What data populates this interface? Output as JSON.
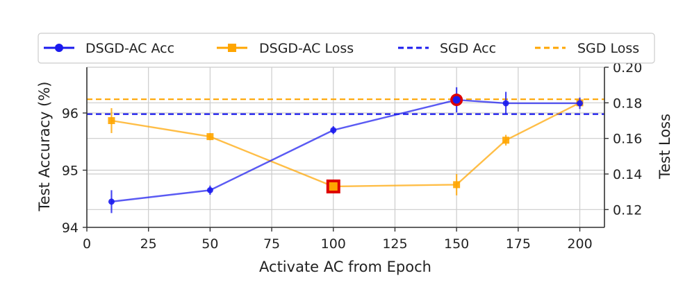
{
  "chart_data": {
    "type": "line",
    "title": "",
    "xlabel": "Activate AC from Epoch",
    "ylabel_left": "Test Accuracy (%)",
    "ylabel_right": "Test Loss",
    "xlim": [
      0,
      210
    ],
    "ylim_left": [
      94.0,
      96.8
    ],
    "ylim_right": [
      0.11,
      0.2
    ],
    "xticks": [
      0,
      25,
      50,
      75,
      100,
      125,
      150,
      175,
      200
    ],
    "yticks_left": [
      94,
      95,
      96
    ],
    "yticks_right": [
      0.12,
      0.14,
      0.16,
      0.18,
      0.2
    ],
    "xtick_labels": [
      "0",
      "25",
      "50",
      "75",
      "100",
      "125",
      "150",
      "175",
      "200"
    ],
    "ytick_left_labels": [
      "94",
      "95",
      "96"
    ],
    "ytick_right_labels": [
      "0.12",
      "0.14",
      "0.16",
      "0.18",
      "0.20"
    ],
    "grid": true,
    "legend_position": "top",
    "colors": {
      "acc": "#1a1aee",
      "loss": "#ffa500",
      "highlight_edge": "#dd0000"
    },
    "series": [
      {
        "name": "DSGD-AC Acc",
        "axis": "left",
        "style": "line-circle",
        "x": [
          10,
          50,
          100,
          150,
          170,
          200
        ],
        "values": [
          94.45,
          94.65,
          95.7,
          96.23,
          96.17,
          96.17
        ],
        "err": [
          0.2,
          0.08,
          0.07,
          0.22,
          0.2,
          0.1
        ],
        "highlight_index": 3
      },
      {
        "name": "DSGD-AC Loss",
        "axis": "right",
        "style": "line-square",
        "x": [
          10,
          50,
          100,
          150,
          170,
          200
        ],
        "values": [
          0.17,
          0.161,
          0.133,
          0.134,
          0.159,
          0.18
        ],
        "err": [
          0.007,
          0.002,
          0.002,
          0.006,
          0.003,
          0.002
        ],
        "highlight_index": 2
      },
      {
        "name": "SGD Acc",
        "axis": "left",
        "style": "dashed",
        "value": 95.98
      },
      {
        "name": "SGD Loss",
        "axis": "right",
        "style": "dashed",
        "value": 0.182
      }
    ]
  }
}
